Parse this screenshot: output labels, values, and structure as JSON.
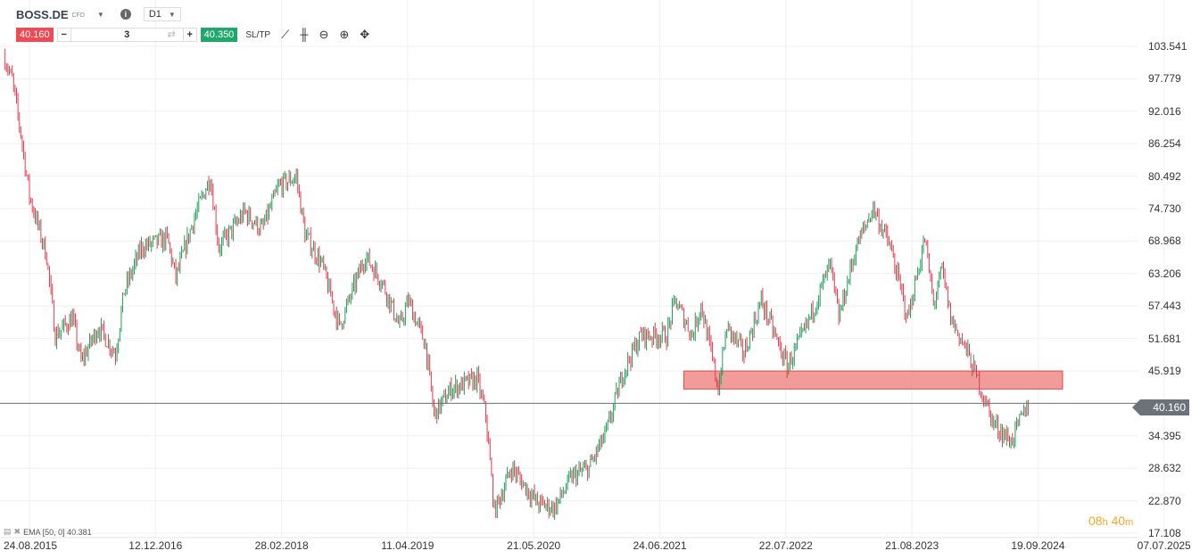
{
  "header": {
    "symbol": "BOSS.DE",
    "instrument_type": "CFD",
    "timeframe": "D1",
    "info_icon": "info-icon"
  },
  "trade": {
    "sell_price": "40.160",
    "quantity": "3",
    "buy_price": "40.350",
    "sltp_label": "SL/TP",
    "minus": "−",
    "plus": "+"
  },
  "toolbar": {
    "icons": [
      "line-chart-icon",
      "candlestick-icon",
      "zoom-out-icon",
      "zoom-in-icon",
      "move-icon"
    ]
  },
  "indicator": {
    "label": "EMA [50, 0] 40.381"
  },
  "timer": {
    "hours": "08",
    "h": "h",
    "minutes": "40",
    "m": "m"
  },
  "colors": {
    "up": "#1e9e5a",
    "down": "#e8384f",
    "zone_fill": "#ee8a8a",
    "zone_border": "#e04848",
    "price_line": "#6b7379",
    "timer": "#f5a623"
  },
  "chart_data": {
    "type": "candlestick",
    "y_ticks": [
      "103.541",
      "97.779",
      "92.016",
      "86.254",
      "80.492",
      "74.730",
      "68.968",
      "63.206",
      "57.443",
      "51.681",
      "45.919",
      "40.160",
      "34.395",
      "28.632",
      "22.870",
      "17.108"
    ],
    "ylim": [
      17.108,
      103.541
    ],
    "x_ticks": [
      "24.08.2015",
      "12.12.2016",
      "28.02.2018",
      "11.04.2019",
      "21.05.2020",
      "24.06.2021",
      "22.07.2022",
      "21.08.2023",
      "19.09.2024",
      "07.07.2025"
    ],
    "current_price": 40.16,
    "zone": {
      "from": "2021-12",
      "to": "2025-08",
      "low": 42.7,
      "high": 45.9
    },
    "approx_path": [
      [
        "2015-05",
        102
      ],
      [
        "2015-06",
        97.6
      ],
      [
        "2015-07",
        88
      ],
      [
        "2015-08",
        77
      ],
      [
        "2015-10",
        66.3
      ],
      [
        "2015-11",
        52.2
      ],
      [
        "2016-01",
        55.3
      ],
      [
        "2016-02",
        47.5
      ],
      [
        "2016-04",
        53.7
      ],
      [
        "2016-06",
        49
      ],
      [
        "2016-07",
        60
      ],
      [
        "2016-09",
        67.8
      ],
      [
        "2016-12",
        69.4
      ],
      [
        "2017-01",
        62.4
      ],
      [
        "2017-03",
        72.5
      ],
      [
        "2017-05",
        80.4
      ],
      [
        "2017-06",
        67.8
      ],
      [
        "2017-09",
        74.1
      ],
      [
        "2017-11",
        71
      ],
      [
        "2018-01",
        78.8
      ],
      [
        "2018-03",
        80.4
      ],
      [
        "2018-04",
        70.2
      ],
      [
        "2018-06",
        64.7
      ],
      [
        "2018-08",
        53.7
      ],
      [
        "2018-11",
        66.3
      ],
      [
        "2019-01",
        61.6
      ],
      [
        "2019-03",
        53.7
      ],
      [
        "2019-04",
        58.4
      ],
      [
        "2019-06",
        50.6
      ],
      [
        "2019-07",
        38.1
      ],
      [
        "2019-09",
        42.8
      ],
      [
        "2019-12",
        44.4
      ],
      [
        "2020-01",
        38.1
      ],
      [
        "2020-02",
        20.9
      ],
      [
        "2020-04",
        28.7
      ],
      [
        "2020-07",
        22.4
      ],
      [
        "2020-09",
        21.6
      ],
      [
        "2020-11",
        27.1
      ],
      [
        "2021-01",
        28.7
      ],
      [
        "2021-03",
        35
      ],
      [
        "2021-05",
        45.9
      ],
      [
        "2021-07",
        52.2
      ],
      [
        "2021-10",
        52.2
      ],
      [
        "2021-11",
        58.4
      ],
      [
        "2022-01",
        52.2
      ],
      [
        "2022-02",
        57.7
      ],
      [
        "2022-04",
        42.8
      ],
      [
        "2022-05",
        53.7
      ],
      [
        "2022-07",
        49
      ],
      [
        "2022-09",
        58.4
      ],
      [
        "2022-12",
        46.7
      ],
      [
        "2023-02",
        52.9
      ],
      [
        "2023-05",
        64.7
      ],
      [
        "2023-06",
        55.3
      ],
      [
        "2023-08",
        67.8
      ],
      [
        "2023-10",
        74.9
      ],
      [
        "2023-12",
        67.8
      ],
      [
        "2024-02",
        55.3
      ],
      [
        "2024-04",
        69.4
      ],
      [
        "2024-05",
        57.7
      ],
      [
        "2024-06",
        63.9
      ],
      [
        "2024-07",
        55.3
      ],
      [
        "2024-09",
        49
      ],
      [
        "2024-12",
        36.5
      ],
      [
        "2025-02",
        33.4
      ],
      [
        "2025-04",
        40.16
      ]
    ]
  }
}
